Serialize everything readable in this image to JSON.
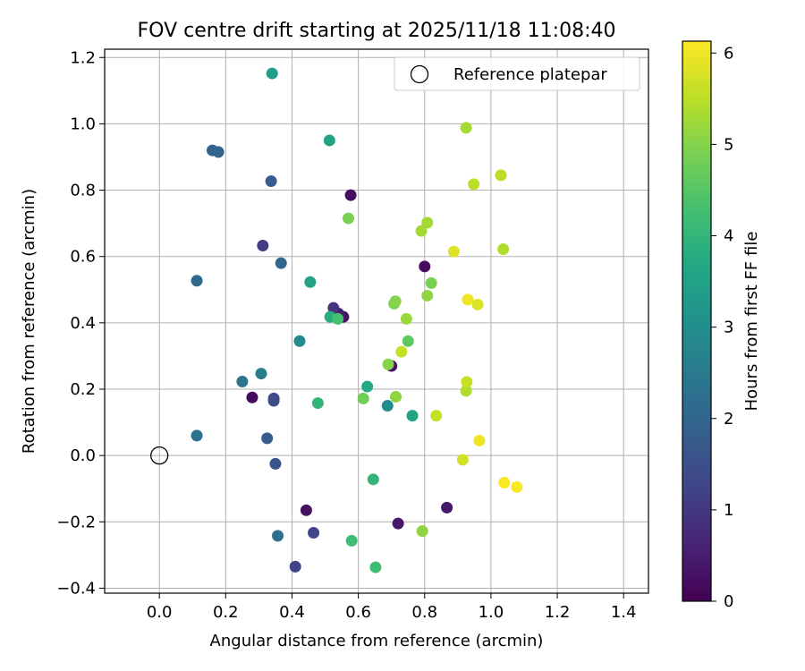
{
  "chart_data": {
    "type": "scatter",
    "title": "FOV centre drift starting at 2025/11/18 11:08:40",
    "xlabel": "Angular distance from reference (arcmin)",
    "ylabel": "Rotation from reference (arcmin)",
    "xlim": [
      -0.165,
      1.475
    ],
    "ylim": [
      -0.415,
      1.225
    ],
    "xticks": [
      0.0,
      0.2,
      0.4,
      0.6,
      0.8,
      1.0,
      1.2,
      1.4
    ],
    "xtick_labels": [
      "0.0",
      "0.2",
      "0.4",
      "0.6",
      "0.8",
      "1.0",
      "1.2",
      "1.4"
    ],
    "yticks": [
      -0.4,
      -0.2,
      0.0,
      0.2,
      0.4,
      0.6,
      0.8,
      1.0,
      1.2
    ],
    "ytick_labels": [
      "−0.4",
      "−0.2",
      "0.0",
      "0.2",
      "0.4",
      "0.6",
      "0.8",
      "1.0",
      "1.2"
    ],
    "grid": true,
    "legend": {
      "position": "top-right",
      "entries": [
        "Reference platepar"
      ]
    },
    "reference_point": {
      "x": 0.0,
      "y": 0.0,
      "label": "Reference platepar"
    },
    "colorbar": {
      "label": "Hours from first FF file",
      "range": [
        0,
        6.13
      ],
      "ticks": [
        0,
        1,
        2,
        3,
        4,
        5,
        6
      ],
      "tick_labels": [
        "0",
        "1",
        "2",
        "3",
        "4",
        "5",
        "6"
      ],
      "colormap": "viridis"
    },
    "points": [
      {
        "x": 0.577,
        "y": 0.785,
        "h": 0.2
      },
      {
        "x": 0.8,
        "y": 0.57,
        "h": 0.2
      },
      {
        "x": 0.555,
        "y": 0.418,
        "h": 0.3
      },
      {
        "x": 0.54,
        "y": 0.428,
        "h": 0.5
      },
      {
        "x": 0.7,
        "y": 0.27,
        "h": 0.3
      },
      {
        "x": 0.28,
        "y": 0.175,
        "h": 0.2
      },
      {
        "x": 0.443,
        "y": -0.165,
        "h": 0.3
      },
      {
        "x": 0.72,
        "y": -0.205,
        "h": 0.4
      },
      {
        "x": 0.867,
        "y": -0.157,
        "h": 0.4
      },
      {
        "x": 0.525,
        "y": 0.445,
        "h": 0.9
      },
      {
        "x": 0.312,
        "y": 0.633,
        "h": 1.1
      },
      {
        "x": 0.41,
        "y": -0.335,
        "h": 1.2
      },
      {
        "x": 0.465,
        "y": -0.233,
        "h": 1.3
      },
      {
        "x": 0.345,
        "y": 0.172,
        "h": 1.3
      },
      {
        "x": 0.345,
        "y": 0.165,
        "h": 1.4
      },
      {
        "x": 0.35,
        "y": -0.025,
        "h": 1.6
      },
      {
        "x": 0.337,
        "y": 0.827,
        "h": 1.8
      },
      {
        "x": 0.325,
        "y": 0.052,
        "h": 1.8
      },
      {
        "x": 0.16,
        "y": 0.92,
        "h": 1.9
      },
      {
        "x": 0.178,
        "y": 0.915,
        "h": 2.0
      },
      {
        "x": 0.367,
        "y": 0.58,
        "h": 2.0
      },
      {
        "x": 0.357,
        "y": -0.242,
        "h": 2.2
      },
      {
        "x": 0.113,
        "y": 0.527,
        "h": 2.1
      },
      {
        "x": 0.113,
        "y": 0.06,
        "h": 2.3
      },
      {
        "x": 0.25,
        "y": 0.223,
        "h": 2.4
      },
      {
        "x": 0.307,
        "y": 0.247,
        "h": 2.6
      },
      {
        "x": 0.423,
        "y": 0.345,
        "h": 2.9
      },
      {
        "x": 0.688,
        "y": 0.15,
        "h": 3.0
      },
      {
        "x": 0.34,
        "y": 1.152,
        "h": 3.4
      },
      {
        "x": 0.513,
        "y": 0.95,
        "h": 3.5
      },
      {
        "x": 0.455,
        "y": 0.523,
        "h": 3.5
      },
      {
        "x": 0.763,
        "y": 0.12,
        "h": 3.6
      },
      {
        "x": 0.627,
        "y": 0.208,
        "h": 3.7
      },
      {
        "x": 0.515,
        "y": 0.418,
        "h": 3.8
      },
      {
        "x": 0.478,
        "y": 0.158,
        "h": 4.0
      },
      {
        "x": 0.645,
        "y": -0.072,
        "h": 4.0
      },
      {
        "x": 0.58,
        "y": -0.257,
        "h": 4.2
      },
      {
        "x": 0.652,
        "y": -0.337,
        "h": 4.2
      },
      {
        "x": 0.538,
        "y": 0.412,
        "h": 4.3
      },
      {
        "x": 0.75,
        "y": 0.345,
        "h": 4.6
      },
      {
        "x": 0.615,
        "y": 0.172,
        "h": 4.8
      },
      {
        "x": 0.57,
        "y": 0.715,
        "h": 4.9
      },
      {
        "x": 0.708,
        "y": 0.458,
        "h": 4.9
      },
      {
        "x": 0.82,
        "y": 0.52,
        "h": 4.9
      },
      {
        "x": 0.712,
        "y": 0.465,
        "h": 5.0
      },
      {
        "x": 0.69,
        "y": 0.275,
        "h": 5.0
      },
      {
        "x": 0.713,
        "y": 0.177,
        "h": 5.1
      },
      {
        "x": 0.793,
        "y": -0.228,
        "h": 5.1
      },
      {
        "x": 0.808,
        "y": 0.482,
        "h": 5.1
      },
      {
        "x": 0.745,
        "y": 0.412,
        "h": 5.2
      },
      {
        "x": 0.79,
        "y": 0.677,
        "h": 5.3
      },
      {
        "x": 0.808,
        "y": 0.702,
        "h": 5.3
      },
      {
        "x": 0.925,
        "y": 0.988,
        "h": 5.3
      },
      {
        "x": 0.925,
        "y": 0.195,
        "h": 5.4
      },
      {
        "x": 1.037,
        "y": 0.622,
        "h": 5.4
      },
      {
        "x": 0.948,
        "y": 0.818,
        "h": 5.5
      },
      {
        "x": 1.03,
        "y": 0.845,
        "h": 5.5
      },
      {
        "x": 0.73,
        "y": 0.313,
        "h": 5.6
      },
      {
        "x": 0.835,
        "y": 0.12,
        "h": 5.6
      },
      {
        "x": 0.927,
        "y": 0.222,
        "h": 5.6
      },
      {
        "x": 0.915,
        "y": -0.013,
        "h": 5.7
      },
      {
        "x": 0.888,
        "y": 0.615,
        "h": 5.85
      },
      {
        "x": 0.93,
        "y": 0.47,
        "h": 6.0
      },
      {
        "x": 0.96,
        "y": 0.455,
        "h": 5.8
      },
      {
        "x": 0.965,
        "y": 0.045,
        "h": 6.0
      },
      {
        "x": 1.04,
        "y": -0.082,
        "h": 6.1
      },
      {
        "x": 1.078,
        "y": -0.095,
        "h": 6.1
      }
    ]
  }
}
